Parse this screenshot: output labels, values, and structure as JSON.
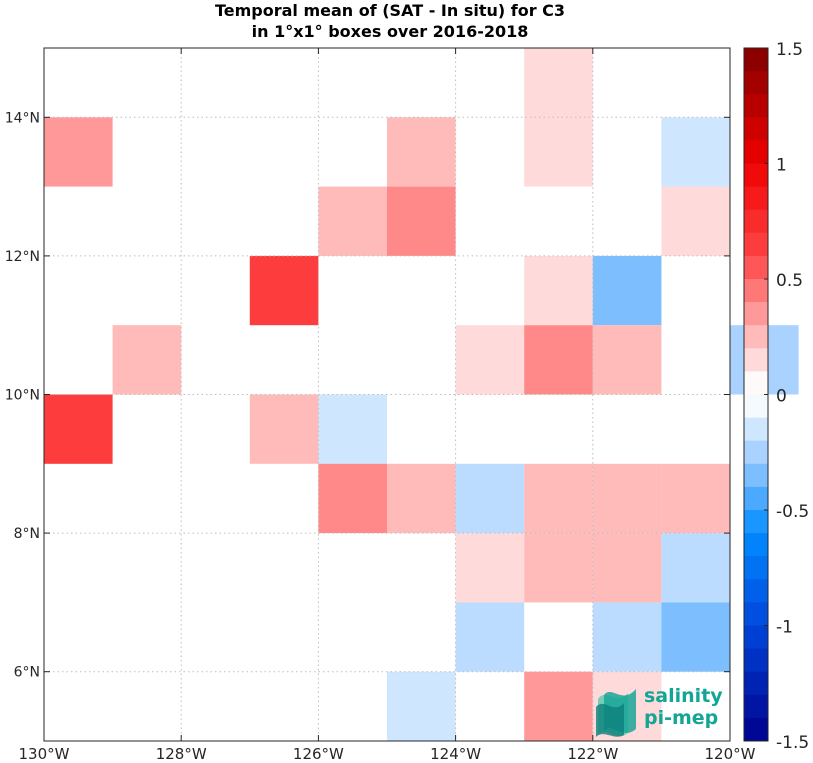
{
  "chart_data": {
    "type": "heatmap",
    "title": "Temporal mean of (SAT - In situ) for C3",
    "subtitle": "in 1°x1° boxes over 2016-2018",
    "xlim": [
      -130,
      -120
    ],
    "ylim": [
      5,
      15
    ],
    "x_ticks": [
      -130,
      -128,
      -126,
      -124,
      -122,
      -120
    ],
    "x_tick_labels": [
      "130°W",
      "128°W",
      "126°W",
      "124°W",
      "122°W",
      "120°W"
    ],
    "y_ticks": [
      6,
      8,
      10,
      12,
      14
    ],
    "y_tick_labels": [
      "6°N",
      "8°N",
      "10°N",
      "12°N",
      "14°N"
    ],
    "grid": true,
    "cell_size_deg": 1,
    "colorbar": {
      "range": [
        -1.5,
        1.5
      ],
      "levels": 30,
      "ticks": [
        1.5,
        1,
        0.5,
        0,
        -0.5,
        -1,
        -1.5
      ],
      "tick_labels": [
        "1.5",
        "1",
        "0.5",
        "0",
        "-0.5",
        "-1",
        "-1.5"
      ]
    },
    "cells": [
      {
        "lon": -123,
        "lat": 14,
        "value": 0.15
      },
      {
        "lon": -130,
        "lat": 13,
        "value": 0.35
      },
      {
        "lon": -125,
        "lat": 13,
        "value": 0.25
      },
      {
        "lon": -123,
        "lat": 13,
        "value": 0.15
      },
      {
        "lon": -121,
        "lat": 13,
        "value": -0.15
      },
      {
        "lon": -126,
        "lat": 12,
        "value": 0.25
      },
      {
        "lon": -125,
        "lat": 12,
        "value": 0.4
      },
      {
        "lon": -121,
        "lat": 12,
        "value": 0.15
      },
      {
        "lon": -127,
        "lat": 11,
        "value": 0.65
      },
      {
        "lon": -123,
        "lat": 11,
        "value": 0.15
      },
      {
        "lon": -122,
        "lat": 11,
        "value": -0.35
      },
      {
        "lon": -129,
        "lat": 10,
        "value": 0.25
      },
      {
        "lon": -124,
        "lat": 10,
        "value": 0.15
      },
      {
        "lon": -123,
        "lat": 10,
        "value": 0.4
      },
      {
        "lon": -122,
        "lat": 10,
        "value": 0.25
      },
      {
        "lon": -120,
        "lat": 10,
        "value": -0.25
      },
      {
        "lon": -130,
        "lat": 9,
        "value": 0.65
      },
      {
        "lon": -127,
        "lat": 9,
        "value": 0.25
      },
      {
        "lon": -126,
        "lat": 9,
        "value": -0.15
      },
      {
        "lon": -126,
        "lat": 8,
        "value": 0.4
      },
      {
        "lon": -125,
        "lat": 8,
        "value": 0.25
      },
      {
        "lon": -124,
        "lat": 8,
        "value": -0.2
      },
      {
        "lon": -123,
        "lat": 8,
        "value": 0.25
      },
      {
        "lon": -122,
        "lat": 8,
        "value": 0.25
      },
      {
        "lon": -121,
        "lat": 8,
        "value": 0.25
      },
      {
        "lon": -124,
        "lat": 7,
        "value": 0.15
      },
      {
        "lon": -123,
        "lat": 7,
        "value": 0.25
      },
      {
        "lon": -122,
        "lat": 7,
        "value": 0.25
      },
      {
        "lon": -121,
        "lat": 7,
        "value": -0.2
      },
      {
        "lon": -124,
        "lat": 6,
        "value": -0.2
      },
      {
        "lon": -122,
        "lat": 6,
        "value": -0.2
      },
      {
        "lon": -121,
        "lat": 6,
        "value": -0.35
      },
      {
        "lon": -125,
        "lat": 5,
        "value": -0.15
      },
      {
        "lon": -123,
        "lat": 5,
        "value": 0.35
      },
      {
        "lon": -122,
        "lat": 5,
        "value": 0.15
      }
    ]
  },
  "logo": {
    "line1": "salinity",
    "line2": "pi-mep",
    "colors": [
      "#0d7f7a",
      "#1aa596",
      "#5ccdb4"
    ]
  }
}
